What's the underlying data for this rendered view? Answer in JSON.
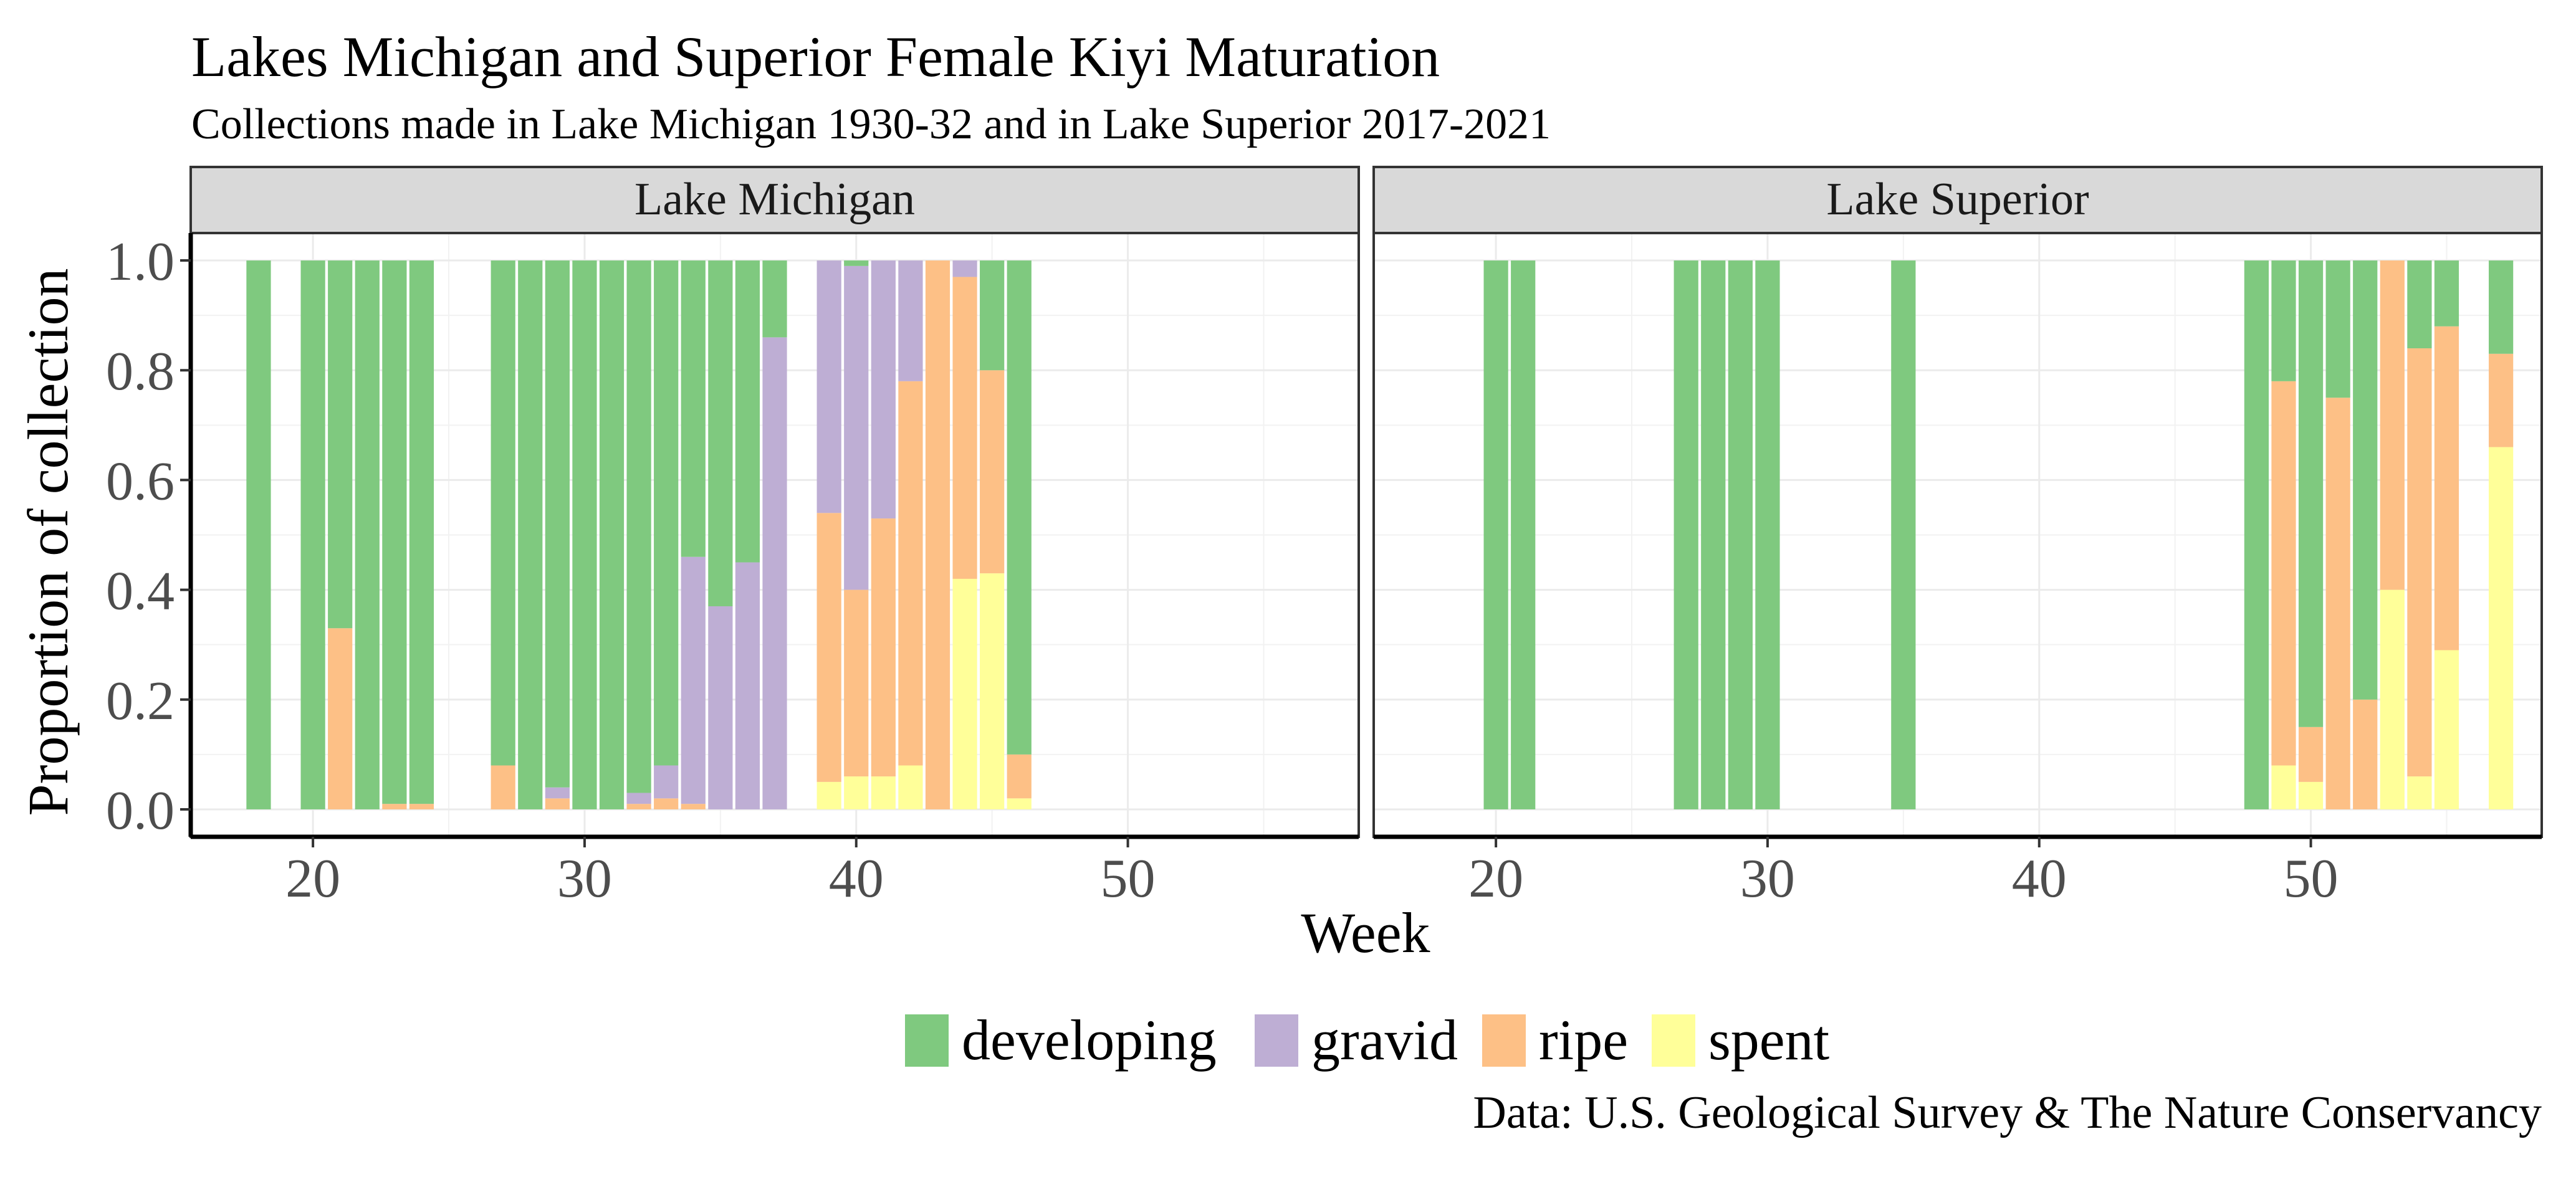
{
  "chart_data": {
    "type": "bar",
    "stacked": true,
    "normalized": true,
    "title": "Lakes Michigan and Superior Female Kiyi Maturation",
    "subtitle": "Collections made in Lake Michigan 1930-32 and in Lake Superior 2017-2021",
    "xlabel": "Week",
    "ylabel": "Proportion of collection",
    "caption": "Data: U.S. Geological Survey & The Nature Conservancy",
    "xlim": [
      15.5,
      58.5
    ],
    "ylim": [
      -0.05,
      1.05
    ],
    "x_ticks": [
      20,
      30,
      40,
      50
    ],
    "y_ticks": [
      0.0,
      0.2,
      0.4,
      0.6,
      0.8,
      1.0
    ],
    "y_tick_labels": [
      "0.0",
      "0.2",
      "0.4",
      "0.6",
      "0.8",
      "1.0"
    ],
    "grid": true,
    "legend": {
      "position": "bottom",
      "items": [
        "developing",
        "gravid",
        "ripe",
        "spent"
      ]
    },
    "colors": {
      "developing": "#7fc97f",
      "gravid": "#beaed4",
      "ripe": "#fdc086",
      "spent": "#ffff99"
    },
    "stack_order": [
      "spent",
      "ripe",
      "gravid",
      "developing"
    ],
    "panels": [
      {
        "label": "Lake Michigan",
        "bars": [
          {
            "week": 18,
            "developing": 1.0
          },
          {
            "week": 20,
            "developing": 1.0
          },
          {
            "week": 21,
            "developing": 0.67,
            "ripe": 0.33
          },
          {
            "week": 22,
            "developing": 1.0
          },
          {
            "week": 23,
            "developing": 0.99,
            "ripe": 0.01
          },
          {
            "week": 24,
            "developing": 0.99,
            "ripe": 0.01
          },
          {
            "week": 27,
            "developing": 0.92,
            "ripe": 0.08
          },
          {
            "week": 28,
            "developing": 1.0
          },
          {
            "week": 29,
            "developing": 0.96,
            "gravid": 0.02,
            "ripe": 0.02
          },
          {
            "week": 30,
            "developing": 1.0
          },
          {
            "week": 31,
            "developing": 1.0
          },
          {
            "week": 32,
            "developing": 0.97,
            "gravid": 0.02,
            "ripe": 0.01
          },
          {
            "week": 33,
            "developing": 0.92,
            "gravid": 0.06,
            "ripe": 0.02
          },
          {
            "week": 34,
            "developing": 0.54,
            "gravid": 0.45,
            "ripe": 0.01
          },
          {
            "week": 35,
            "developing": 0.63,
            "gravid": 0.37
          },
          {
            "week": 36,
            "developing": 0.55,
            "gravid": 0.45
          },
          {
            "week": 37,
            "developing": 0.14,
            "gravid": 0.86
          },
          {
            "week": 39,
            "gravid": 0.46,
            "ripe": 0.49,
            "spent": 0.05
          },
          {
            "week": 40,
            "developing": 0.01,
            "gravid": 0.59,
            "ripe": 0.34,
            "spent": 0.06
          },
          {
            "week": 41,
            "gravid": 0.47,
            "ripe": 0.47,
            "spent": 0.06
          },
          {
            "week": 42,
            "gravid": 0.22,
            "ripe": 0.7,
            "spent": 0.08
          },
          {
            "week": 43,
            "ripe": 1.0
          },
          {
            "week": 44,
            "gravid": 0.03,
            "ripe": 0.55,
            "spent": 0.42
          },
          {
            "week": 45,
            "developing": 0.2,
            "ripe": 0.37,
            "spent": 0.43
          },
          {
            "week": 46,
            "developing": 0.9,
            "ripe": 0.08,
            "spent": 0.02
          }
        ]
      },
      {
        "label": "Lake Superior",
        "bars": [
          {
            "week": 20,
            "developing": 1.0
          },
          {
            "week": 21,
            "developing": 1.0
          },
          {
            "week": 27,
            "developing": 1.0
          },
          {
            "week": 28,
            "developing": 1.0
          },
          {
            "week": 29,
            "developing": 1.0
          },
          {
            "week": 30,
            "developing": 1.0
          },
          {
            "week": 35,
            "developing": 1.0
          },
          {
            "week": 48,
            "developing": 1.0
          },
          {
            "week": 49,
            "developing": 0.22,
            "ripe": 0.7,
            "spent": 0.08
          },
          {
            "week": 50,
            "developing": 0.85,
            "ripe": 0.1,
            "spent": 0.05
          },
          {
            "week": 51,
            "developing": 0.25,
            "ripe": 0.75
          },
          {
            "week": 52,
            "developing": 0.8,
            "ripe": 0.2
          },
          {
            "week": 53,
            "ripe": 0.6,
            "spent": 0.4
          },
          {
            "week": 54,
            "developing": 0.16,
            "ripe": 0.78,
            "spent": 0.06
          },
          {
            "week": 55,
            "developing": 0.12,
            "ripe": 0.59,
            "spent": 0.29
          },
          {
            "week": 57,
            "developing": 0.17,
            "ripe": 0.17,
            "spent": 0.66
          }
        ]
      }
    ]
  }
}
